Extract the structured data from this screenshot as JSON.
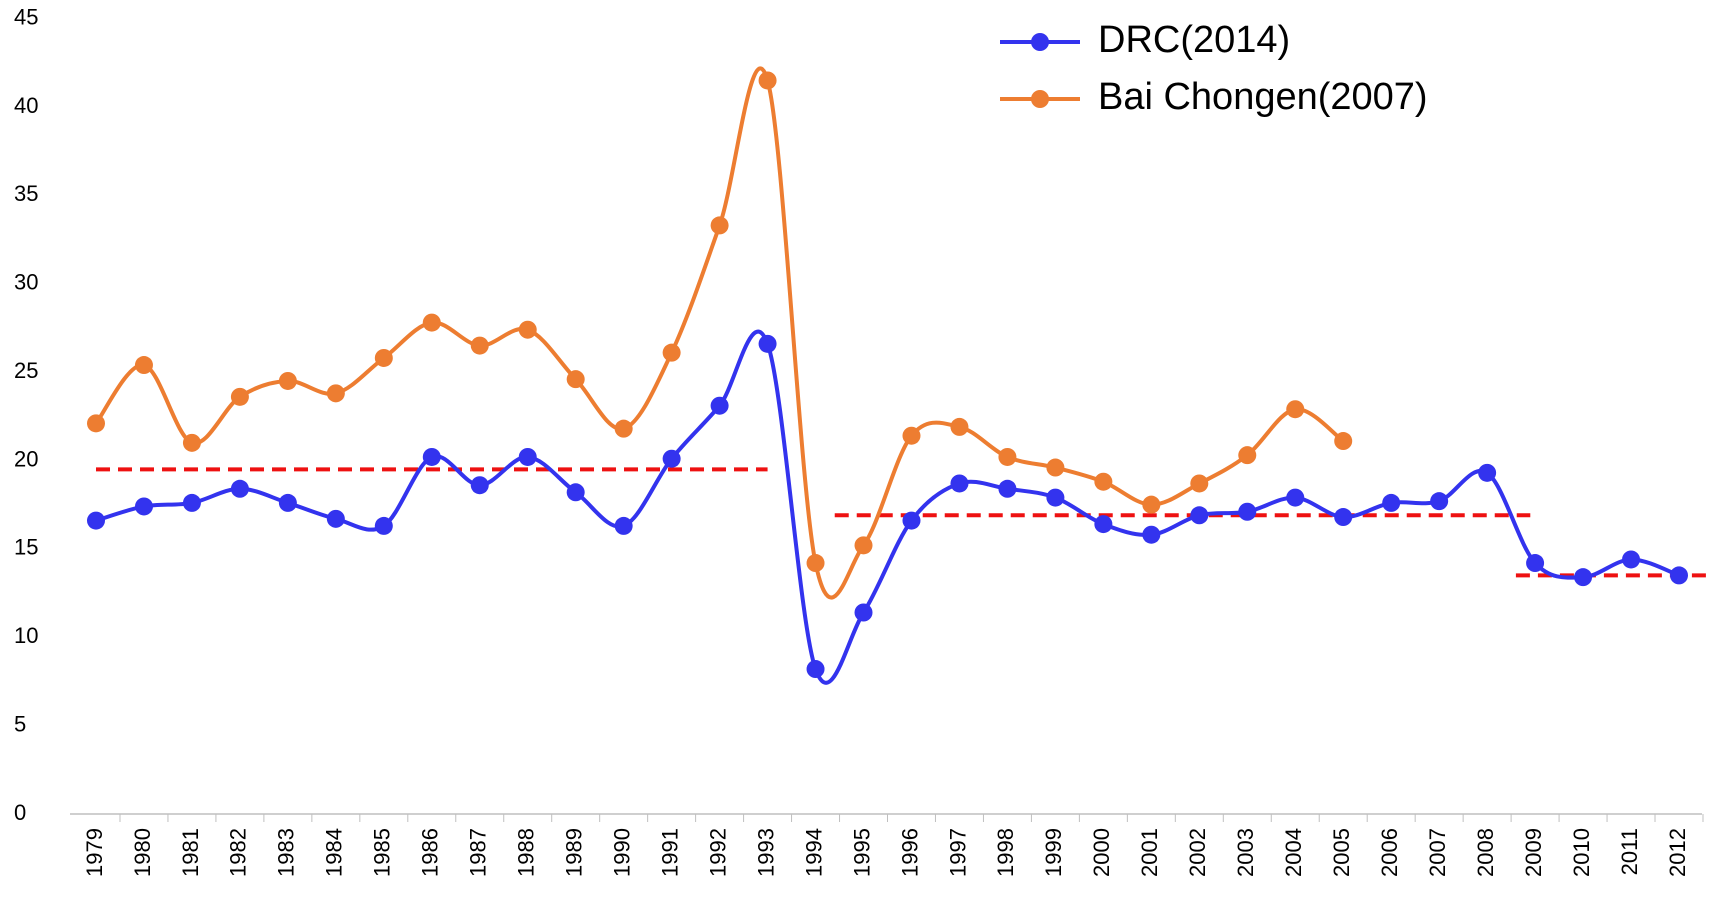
{
  "chart_data": {
    "type": "line",
    "categories": [
      "1979",
      "1980",
      "1981",
      "1982",
      "1983",
      "1984",
      "1985",
      "1986",
      "1987",
      "1988",
      "1989",
      "1990",
      "1991",
      "1992",
      "1993",
      "1994",
      "1995",
      "1996",
      "1997",
      "1998",
      "1999",
      "2000",
      "2001",
      "2002",
      "2003",
      "2004",
      "2005",
      "2006",
      "2007",
      "2008",
      "2009",
      "2010",
      "2011",
      "2012"
    ],
    "series": [
      {
        "name": "DRC(2014)",
        "color": "#3333ee",
        "values": [
          16.6,
          17.4,
          17.6,
          18.4,
          17.6,
          16.7,
          16.3,
          20.2,
          18.6,
          20.2,
          18.2,
          16.3,
          20.1,
          23.1,
          26.6,
          8.2,
          11.4,
          16.6,
          18.7,
          18.4,
          17.9,
          16.4,
          15.8,
          16.9,
          17.1,
          17.9,
          16.8,
          17.6,
          17.7,
          19.3,
          14.2,
          13.4,
          14.4,
          13.5
        ]
      },
      {
        "name": "Bai Chongen(2007)",
        "color": "#ed7d31",
        "values": [
          22.1,
          25.4,
          21.0,
          23.6,
          24.5,
          23.8,
          25.8,
          27.8,
          26.5,
          27.4,
          24.6,
          21.8,
          26.1,
          33.3,
          41.5,
          14.2,
          15.2,
          21.4,
          21.9,
          20.2,
          19.6,
          18.8,
          17.5,
          18.7,
          20.3,
          22.9,
          21.1,
          null,
          null,
          null,
          null,
          null,
          null,
          null
        ]
      }
    ],
    "reference_lines": [
      {
        "value": 19.5,
        "from": 1979,
        "to": 1993
      },
      {
        "value": 16.9,
        "from": 1994.4,
        "to": 2008.9
      },
      {
        "value": 13.5,
        "from": 2008.6,
        "to": 2012.7
      }
    ],
    "reference_color": "#ee1111",
    "ylim": [
      0,
      45
    ],
    "yticks": [
      0,
      5,
      10,
      15,
      20,
      25,
      30,
      35,
      40,
      45
    ],
    "smooth": true
  }
}
